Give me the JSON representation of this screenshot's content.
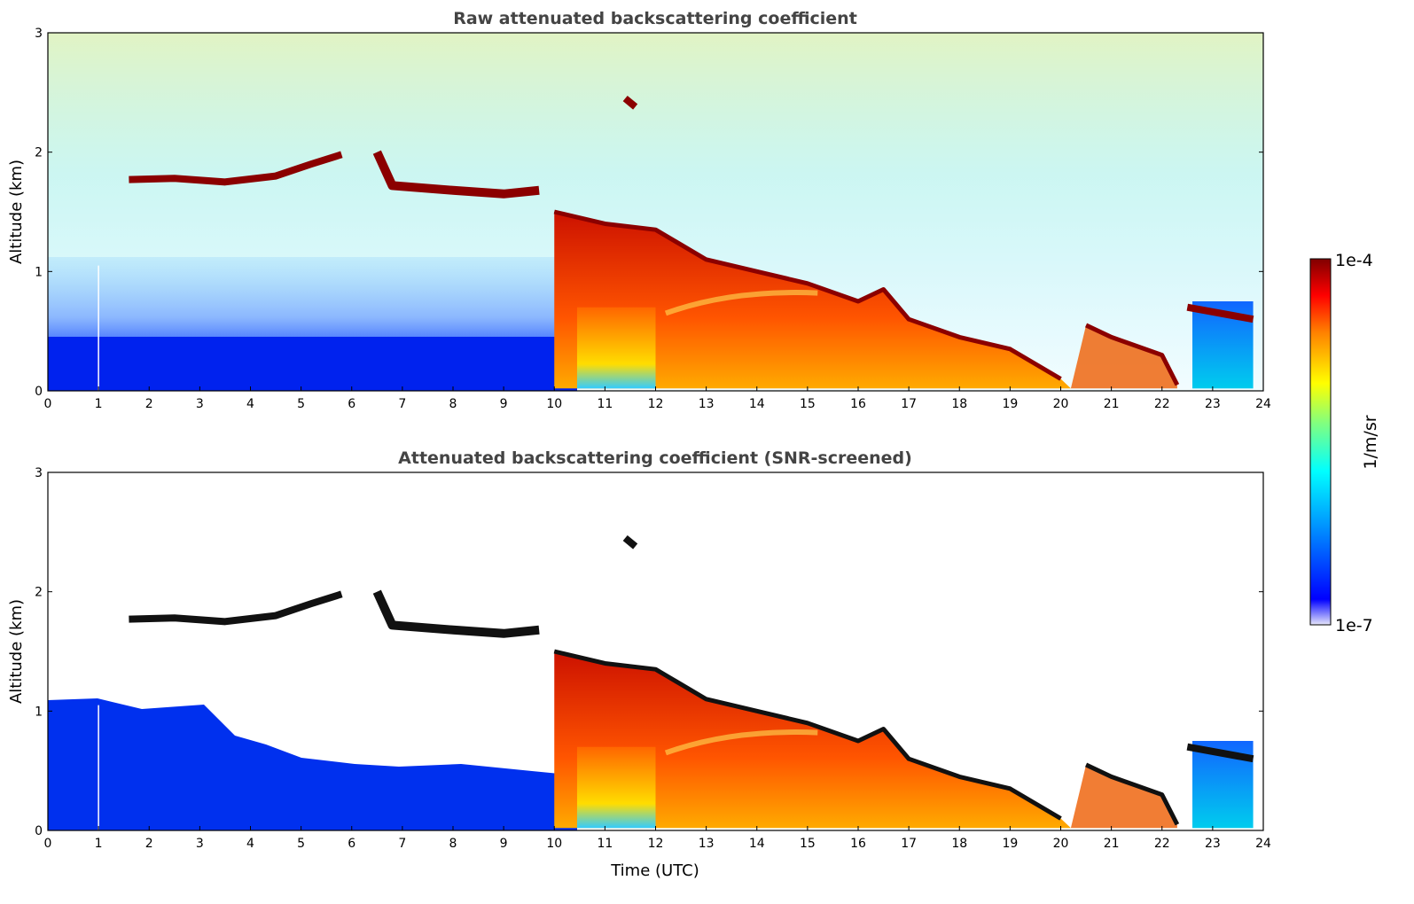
{
  "chart_data": [
    {
      "type": "heatmap",
      "title": "Raw attenuated backscattering coefficient",
      "xlabel": "",
      "ylabel": "Altitude (km)",
      "xlim": [
        0,
        24
      ],
      "ylim": [
        0,
        3
      ],
      "xticks": [
        "0",
        "1",
        "2",
        "3",
        "4",
        "5",
        "6",
        "7",
        "8",
        "9",
        "10",
        "11",
        "12",
        "13",
        "14",
        "15",
        "16",
        "17",
        "18",
        "19",
        "20",
        "21",
        "22",
        "23",
        "24"
      ],
      "yticks": [
        "0",
        "1",
        "2",
        "3"
      ],
      "colormap": "jet",
      "scale": "log",
      "screened": false
    },
    {
      "type": "heatmap",
      "title": "Attenuated backscattering coefficient (SNR-screened)",
      "xlabel": "Time (UTC)",
      "ylabel": "Altitude (km)",
      "xlim": [
        0,
        24
      ],
      "ylim": [
        0,
        3
      ],
      "xticks": [
        "0",
        "1",
        "2",
        "3",
        "4",
        "5",
        "6",
        "7",
        "8",
        "9",
        "10",
        "11",
        "12",
        "13",
        "14",
        "15",
        "16",
        "17",
        "18",
        "19",
        "20",
        "21",
        "22",
        "23",
        "24"
      ],
      "yticks": [
        "0",
        "1",
        "2",
        "3"
      ],
      "colormap": "jet",
      "scale": "log",
      "screened": true
    }
  ],
  "colorbar": {
    "max_label": "1e-4",
    "min_label": "1e-7",
    "unit_label": "1/m/sr",
    "scale": "log",
    "colors": [
      "#e6e6fa",
      "#0000ff",
      "#00aaff",
      "#00ffff",
      "#80ff80",
      "#ffff00",
      "#ff8000",
      "#ff0000",
      "#800000"
    ]
  },
  "features": {
    "cloud_layer": [
      [
        1.6,
        1.77
      ],
      [
        2.5,
        1.78
      ],
      [
        3.5,
        1.75
      ],
      [
        4.5,
        1.8
      ],
      [
        5.2,
        1.9
      ],
      [
        5.8,
        1.98
      ]
    ],
    "cloud_layer_2": [
      [
        6.5,
        2.0
      ],
      [
        6.8,
        1.72
      ],
      [
        8.0,
        1.68
      ],
      [
        9.0,
        1.65
      ],
      [
        9.7,
        1.68
      ]
    ],
    "descending_layer": [
      [
        10.0,
        1.5
      ],
      [
        11.0,
        1.4
      ],
      [
        12.0,
        1.35
      ],
      [
        13.0,
        1.1
      ],
      [
        14.0,
        1.0
      ],
      [
        15.0,
        0.9
      ],
      [
        16.0,
        0.75
      ],
      [
        16.5,
        0.85
      ],
      [
        17.0,
        0.6
      ],
      [
        18.0,
        0.45
      ],
      [
        19.0,
        0.35
      ],
      [
        20.0,
        0.1
      ]
    ],
    "late_layer": [
      [
        20.5,
        0.55
      ],
      [
        21.0,
        0.45
      ],
      [
        22.0,
        0.3
      ],
      [
        22.3,
        0.05
      ]
    ],
    "final_layer": [
      [
        22.5,
        0.7
      ],
      [
        23.8,
        0.6
      ]
    ]
  }
}
